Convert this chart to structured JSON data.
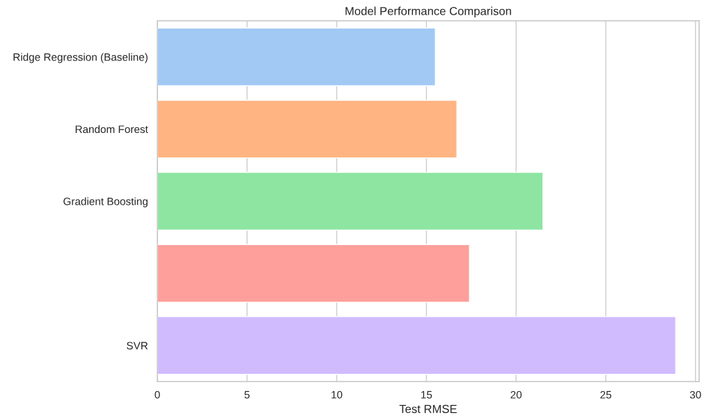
{
  "chart_data": {
    "type": "bar",
    "orientation": "horizontal",
    "title": "Model Performance Comparison",
    "xlabel": "Test RMSE",
    "categories": [
      "Ridge Regression (Baseline)",
      "Random Forest",
      "Gradient Boosting",
      null,
      "SVR"
    ],
    "values": [
      15.5,
      16.7,
      21.5,
      17.4,
      28.9
    ],
    "colors": [
      "#a1c9f4",
      "#ffb482",
      "#8de5a1",
      "#ff9f9b",
      "#d0bbff"
    ],
    "xlim": [
      0,
      30.2
    ],
    "xticks": [
      0,
      5,
      10,
      15,
      20,
      25,
      30
    ],
    "grid": "x"
  }
}
